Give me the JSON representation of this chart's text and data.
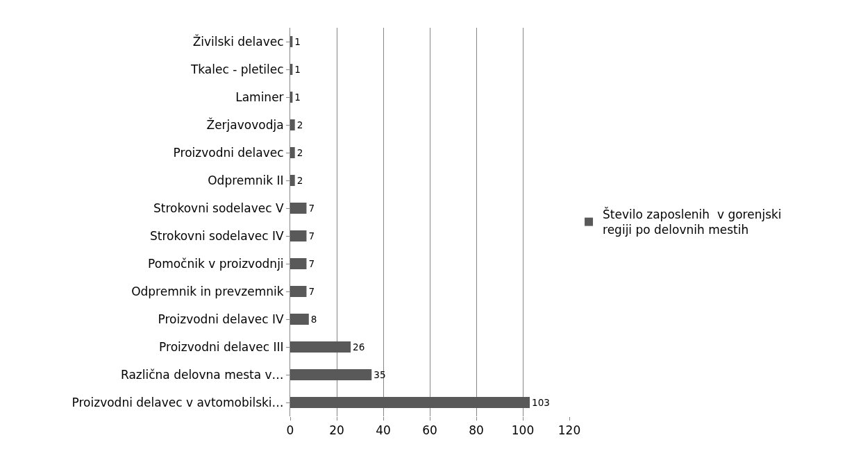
{
  "chart_data": {
    "type": "bar",
    "orientation": "horizontal",
    "categories": [
      "Živilski delavec",
      "Tkalec - pletilec",
      "Laminer",
      "Žerjavovodja",
      "Proizvodni delavec",
      "Odpremnik II",
      "Strokovni sodelavec V",
      "Strokovni sodelavec IV",
      "Pomočnik v proizvodnji",
      "Odpremnik in prevzemnik",
      "Proizvodni delavec IV",
      "Proizvodni delavec III",
      "Različna delovna mesta v…",
      "Proizvodni delavec v avtomobilski…"
    ],
    "series": [
      {
        "name": "Število zaposlenih  v gorenjski regiji po delovnih mestih",
        "color": "#595959",
        "values": [
          1,
          1,
          1,
          2,
          2,
          2,
          7,
          7,
          7,
          7,
          8,
          26,
          35,
          103
        ]
      }
    ],
    "xlim": [
      0,
      120
    ],
    "xticks": [
      0,
      20,
      40,
      60,
      80,
      100,
      120
    ],
    "grid": "x",
    "legend": "right",
    "data_labels": true
  }
}
